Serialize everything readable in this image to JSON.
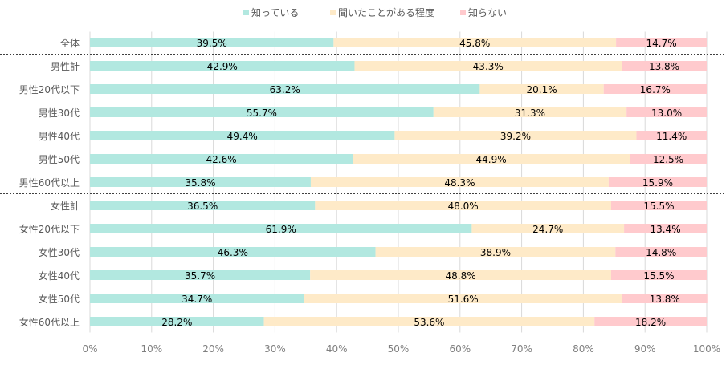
{
  "chart_data": {
    "type": "bar",
    "orientation": "horizontal",
    "stacked": "percent",
    "title": "",
    "xlabel": "",
    "ylabel": "",
    "xlim": [
      0,
      100
    ],
    "grid": true,
    "legend_position": "top",
    "categories": [
      "全体",
      "男性計",
      "男性20代以下",
      "男性30代",
      "男性40代",
      "男性50代",
      "男性60代以上",
      "女性計",
      "女性20代以下",
      "女性30代",
      "女性40代",
      "女性50代",
      "女性60代以上"
    ],
    "separators_after": [
      "全体",
      "男性60代以上"
    ],
    "series": [
      {
        "name": "知っている",
        "color": "#b2e8e0",
        "values": [
          39.5,
          42.9,
          63.2,
          55.7,
          49.4,
          42.6,
          35.8,
          36.5,
          61.9,
          46.3,
          35.7,
          34.7,
          28.2
        ]
      },
      {
        "name": "聞いたことがある程度",
        "color": "#feeac8",
        "values": [
          45.8,
          43.3,
          20.1,
          31.3,
          39.2,
          44.9,
          48.3,
          48.0,
          24.7,
          38.9,
          48.8,
          51.6,
          53.6
        ]
      },
      {
        "name": "知らない",
        "color": "#ffcacd",
        "values": [
          14.7,
          13.8,
          16.7,
          13.0,
          11.4,
          12.5,
          15.9,
          15.5,
          13.4,
          14.8,
          15.5,
          13.8,
          18.2
        ]
      }
    ],
    "x_ticks": [
      "0%",
      "10%",
      "20%",
      "30%",
      "40%",
      "50%",
      "60%",
      "70%",
      "80%",
      "90%",
      "100%"
    ],
    "x_tick_values": [
      0,
      10,
      20,
      30,
      40,
      50,
      60,
      70,
      80,
      90,
      100
    ]
  }
}
